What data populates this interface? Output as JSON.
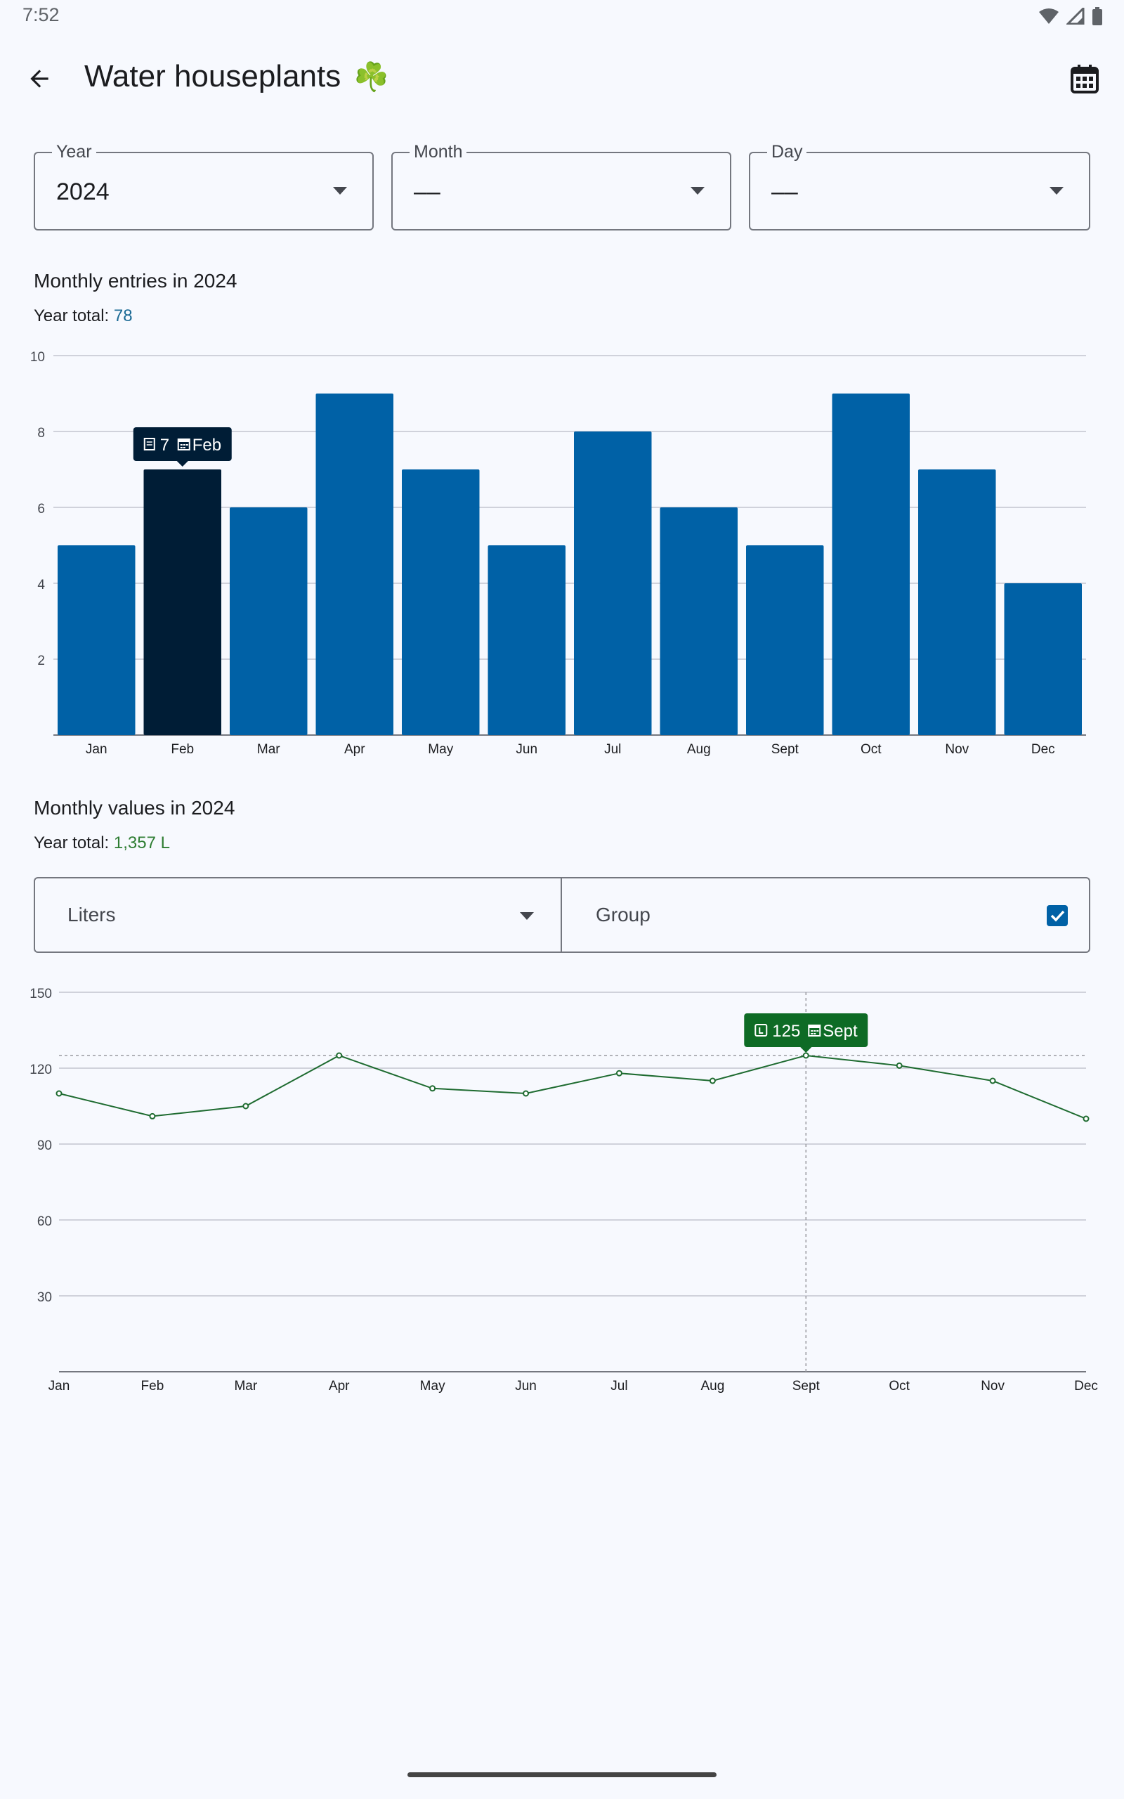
{
  "status": {
    "time": "7:52"
  },
  "header": {
    "title": "Water houseplants",
    "emoji": "☘️"
  },
  "filters": [
    {
      "label": "Year",
      "value": "2024"
    },
    {
      "label": "Month",
      "value": "––"
    },
    {
      "label": "Day",
      "value": "––"
    }
  ],
  "entries": {
    "title": "Monthly entries in 2024",
    "total_label": "Year total: ",
    "total_value": "78",
    "tooltip": {
      "value": "7",
      "month": "Feb"
    }
  },
  "values": {
    "title": "Monthly values in 2024",
    "total_label": "Year total: ",
    "total_value": "1,357 L",
    "unit_select": "Liters",
    "group_label": "Group",
    "group_checked": true,
    "tooltip": {
      "value": "125",
      "month": "Sept"
    }
  },
  "colors": {
    "bar": "#0061a6",
    "bar_selected": "#001d36",
    "line": "#1e6b30",
    "tooltip_green": "#0e6b25"
  },
  "chart_data": [
    {
      "type": "bar",
      "categories": [
        "Jan",
        "Feb",
        "Mar",
        "Apr",
        "May",
        "Jun",
        "Jul",
        "Aug",
        "Sept",
        "Oct",
        "Nov",
        "Dec"
      ],
      "values": [
        5,
        7,
        6,
        9,
        7,
        5,
        8,
        6,
        5,
        9,
        7,
        4
      ],
      "ylim": [
        0,
        10
      ],
      "yticks": [
        2,
        4,
        6,
        8,
        10
      ],
      "selected": "Feb"
    },
    {
      "type": "line",
      "categories": [
        "Jan",
        "Feb",
        "Mar",
        "Apr",
        "May",
        "Jun",
        "Jul",
        "Aug",
        "Sept",
        "Oct",
        "Nov",
        "Dec"
      ],
      "values": [
        110,
        101,
        105,
        125,
        112,
        110,
        118,
        115,
        125,
        121,
        115,
        100
      ],
      "ylim": [
        0,
        150
      ],
      "yticks": [
        30,
        60,
        90,
        120,
        150
      ],
      "selected": "Sept"
    }
  ]
}
